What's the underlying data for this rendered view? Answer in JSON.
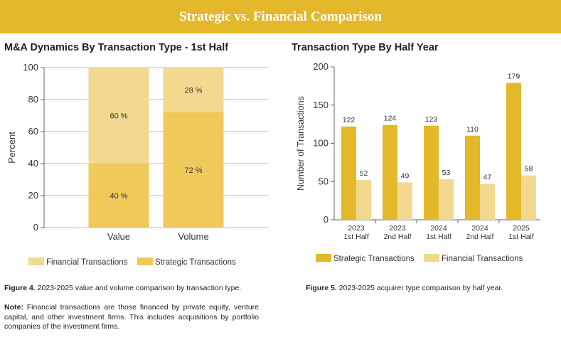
{
  "banner": {
    "title": "Strategic vs. Financial Comparison"
  },
  "colors": {
    "strategic": "#e3b82a",
    "financial": "#f3d990",
    "strategic_stack": "#efc95a",
    "axis": "#666666",
    "grid": "#bbbbbb"
  },
  "chart_data": [
    {
      "type": "bar",
      "stacked": true,
      "title": "M&A Dynamics By Transaction Type - 1st Half",
      "ylabel": "Percent",
      "categories": [
        "Value",
        "Volume"
      ],
      "ylim": [
        0,
        100
      ],
      "yticks": [
        "0",
        "20",
        "40",
        "60",
        "80",
        "100"
      ],
      "series": [
        {
          "name": "Strategic Transactions",
          "values": [
            40,
            72
          ],
          "labels": [
            "40 %",
            "72 %"
          ]
        },
        {
          "name": "Financial Transactions",
          "values": [
            60,
            28
          ],
          "labels": [
            "60 %",
            "28 %"
          ]
        }
      ],
      "legend": [
        "Financial Transactions",
        "Strategic Transactions"
      ],
      "grid": true,
      "legend_position": "bottom"
    },
    {
      "type": "bar",
      "title": "Transaction Type By Half Year",
      "ylabel": "Number of Transactions",
      "categories": [
        [
          "2023",
          "1st Half"
        ],
        [
          "2023",
          "2nd Half"
        ],
        [
          "2024",
          "1st Half"
        ],
        [
          "2024",
          "2nd Half"
        ],
        [
          "2025",
          "1st Half"
        ]
      ],
      "ylim": [
        0,
        200
      ],
      "yticks": [
        "0",
        "50",
        "100",
        "150",
        "200"
      ],
      "series": [
        {
          "name": "Strategic Transactions",
          "values": [
            122,
            124,
            123,
            110,
            179
          ]
        },
        {
          "name": "Financial Transactions",
          "values": [
            52,
            49,
            53,
            47,
            58
          ]
        }
      ],
      "grid": false,
      "legend_position": "bottom"
    }
  ],
  "captions": {
    "fig4_label": "Figure 4.",
    "fig4_text": " 2023-2025 value and volume comparison by transaction type.",
    "fig5_label": "Figure 5.",
    "fig5_text": " 2023-2025 acquirer type comparison by half year.",
    "note_label": "Note:",
    "note_text": " Financial transactions are those financed by private equity, venture capital, and other investment firms. This includes acquisitions by portfolio companies of the investment firms."
  }
}
